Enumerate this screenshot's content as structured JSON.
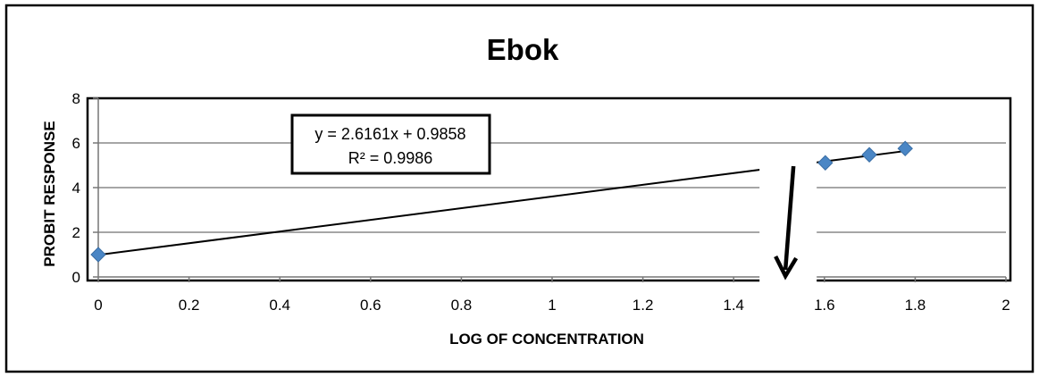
{
  "chart_data": {
    "type": "scatter",
    "title": "Ebok",
    "xlabel": "LOG OF CONCENTRATION",
    "ylabel": "PROBIT RESPONSE",
    "xlim": [
      0,
      2
    ],
    "ylim": [
      0,
      8
    ],
    "x_ticks": [
      "0",
      "0.2",
      "0.4",
      "0.6",
      "0.8",
      "1",
      "1.2",
      "1.4",
      "1.6",
      "1.8",
      "2"
    ],
    "y_ticks": [
      "0",
      "2",
      "4",
      "6",
      "8"
    ],
    "grid": "horizontal",
    "marker": "diamond",
    "colors": {
      "marker": "#4a86c5",
      "trendline": "#000000",
      "gridline": "#a6a6a6"
    },
    "series": [
      {
        "points": [
          {
            "x": 0,
            "y": 1.0
          },
          {
            "x": 1.602,
            "y": 5.11
          },
          {
            "x": 1.699,
            "y": 5.47
          },
          {
            "x": 1.778,
            "y": 5.75
          }
        ]
      }
    ],
    "trendline": {
      "type": "linear",
      "slope": 2.6161,
      "intercept": 0.9858,
      "x_range": [
        0,
        1.778
      ],
      "equation": "y = 2.6161x + 0.9858",
      "r_squared": "R² = 0.9986"
    },
    "annotations": [
      {
        "type": "arrow",
        "direction": "down",
        "at_x": 1.52
      }
    ]
  }
}
